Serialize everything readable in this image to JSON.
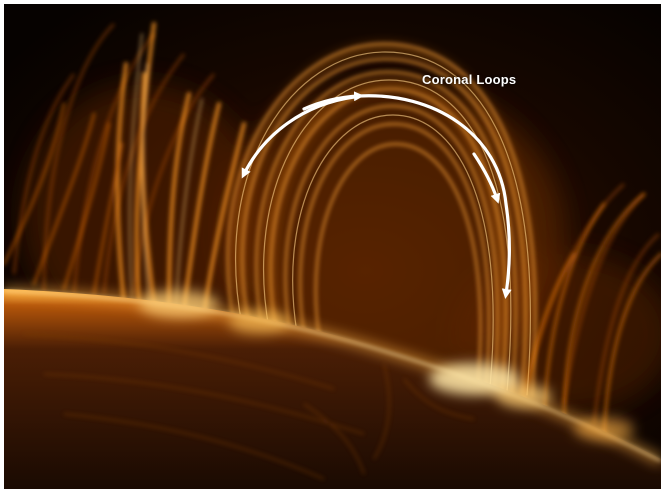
{
  "image": {
    "subject": "solar-corona",
    "annotation": {
      "label": "Coronal Loops",
      "label_color": "#ffffff",
      "arrow_color": "#ffffff"
    },
    "palette": {
      "background": "#0a0400",
      "glow_bright": "#fff1c2",
      "glow_mid": "#ff9a1e",
      "glow_dark": "#6b2a00",
      "surface": "#2a1204"
    }
  }
}
